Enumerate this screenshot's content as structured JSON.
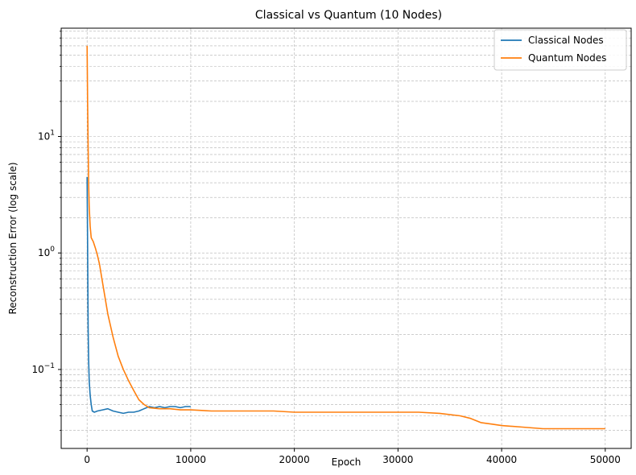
{
  "chart_data": {
    "type": "line",
    "title": "Classical vs Quantum (10 Nodes)",
    "xlabel": "Epoch",
    "ylabel": "Reconstruction Error (log scale)",
    "yscale": "log",
    "xlim": [
      -2500,
      52500
    ],
    "ylim": [
      0.021,
      85
    ],
    "x_ticks": [
      {
        "value": 0,
        "label": "0"
      },
      {
        "value": 10000,
        "label": "10000"
      },
      {
        "value": 20000,
        "label": "20000"
      },
      {
        "value": 30000,
        "label": "30000"
      },
      {
        "value": 40000,
        "label": "40000"
      },
      {
        "value": 50000,
        "label": "50000"
      }
    ],
    "y_ticks": [
      {
        "value": 0.1,
        "base": "10",
        "exp": "−1"
      },
      {
        "value": 1,
        "base": "10",
        "exp": "0"
      },
      {
        "value": 10,
        "base": "10",
        "exp": "1"
      }
    ],
    "grid": true,
    "legend_position": "top-right",
    "series": [
      {
        "name": "Classical Nodes",
        "color": "#1f77b4",
        "x": [
          0,
          50,
          100,
          150,
          200,
          300,
          400,
          500,
          700,
          1000,
          1500,
          2000,
          2500,
          3000,
          3500,
          4000,
          4500,
          5000,
          5500,
          6000,
          6500,
          7000,
          7500,
          8000,
          8500,
          9000,
          9500,
          10000
        ],
        "y": [
          4.5,
          1.2,
          0.22,
          0.12,
          0.08,
          0.06,
          0.05,
          0.044,
          0.043,
          0.044,
          0.045,
          0.046,
          0.044,
          0.043,
          0.042,
          0.043,
          0.043,
          0.044,
          0.046,
          0.048,
          0.047,
          0.048,
          0.047,
          0.048,
          0.048,
          0.047,
          0.048,
          0.048
        ]
      },
      {
        "name": "Quantum Nodes",
        "color": "#ff7f0e",
        "x": [
          0,
          50,
          100,
          150,
          200,
          300,
          400,
          600,
          800,
          1000,
          1200,
          1500,
          1800,
          2000,
          2500,
          3000,
          3500,
          4000,
          4500,
          5000,
          5500,
          6000,
          7000,
          8000,
          9000,
          10000,
          12000,
          14000,
          16000,
          18000,
          20000,
          22000,
          24000,
          26000,
          28000,
          30000,
          32000,
          34000,
          36000,
          37000,
          38000,
          39000,
          40000,
          42000,
          44000,
          46000,
          48000,
          50000
        ],
        "y": [
          60,
          20,
          8,
          4,
          2.5,
          1.7,
          1.35,
          1.25,
          1.1,
          0.95,
          0.8,
          0.55,
          0.38,
          0.3,
          0.19,
          0.13,
          0.1,
          0.08,
          0.066,
          0.055,
          0.05,
          0.047,
          0.046,
          0.046,
          0.045,
          0.045,
          0.044,
          0.044,
          0.044,
          0.044,
          0.043,
          0.043,
          0.043,
          0.043,
          0.043,
          0.043,
          0.043,
          0.042,
          0.04,
          0.038,
          0.035,
          0.034,
          0.033,
          0.032,
          0.031,
          0.031,
          0.031,
          0.031
        ]
      }
    ]
  }
}
